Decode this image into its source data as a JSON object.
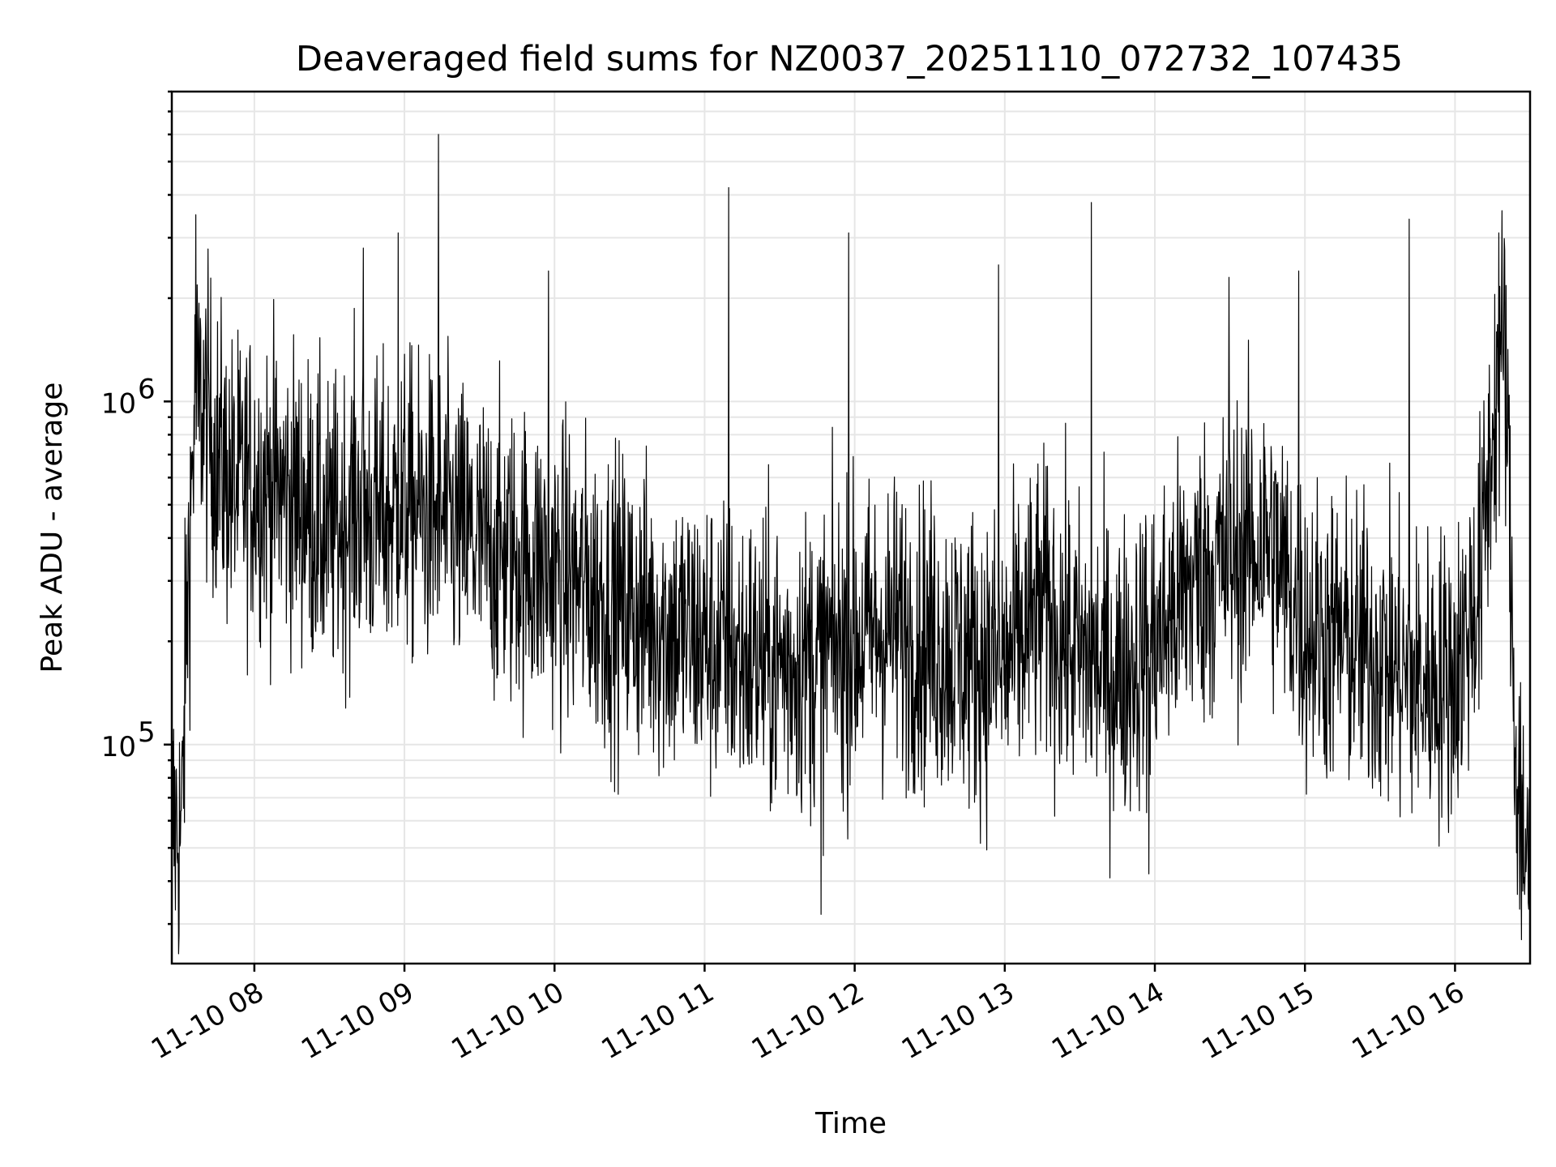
{
  "chart_data": {
    "type": "line",
    "title": "Deaveraged field sums for NZ0037_20251110_072732_107435",
    "xlabel": "Time",
    "ylabel": "Peak ADU - average",
    "yscale": "log",
    "xlim": [
      "2025-11-10 07:27",
      "2025-11-10 16:30"
    ],
    "ylim": [
      23000,
      8000000
    ],
    "grid": true,
    "line_color": "#000000",
    "x_ticks": [
      "11-10 08",
      "11-10 09",
      "11-10 10",
      "11-10 11",
      "11-10 12",
      "11-10 13",
      "11-10 14",
      "11-10 15",
      "11-10 16"
    ],
    "y_ticks": [
      {
        "value": 100000,
        "base": "10",
        "exp": "5"
      },
      {
        "value": 1000000,
        "base": "10",
        "exp": "6"
      }
    ],
    "series": [
      {
        "x": [
          "2025-11-10 07:27",
          "2025-11-10 07:31",
          "2025-11-10 07:33",
          "2025-11-10 07:36",
          "2025-11-10 07:39",
          "2025-11-10 07:45",
          "2025-11-10 07:52",
          "2025-11-10 08:00",
          "2025-11-10 08:10",
          "2025-11-10 08:20",
          "2025-11-10 08:30",
          "2025-11-10 08:40",
          "2025-11-10 08:50",
          "2025-11-10 09:00",
          "2025-11-10 09:15",
          "2025-11-10 09:30",
          "2025-11-10 09:45",
          "2025-11-10 10:00",
          "2025-11-10 10:15",
          "2025-11-10 10:30",
          "2025-11-10 10:45",
          "2025-11-10 11:00",
          "2025-11-10 11:15",
          "2025-11-10 11:30",
          "2025-11-10 11:45",
          "2025-11-10 12:00",
          "2025-11-10 12:15",
          "2025-11-10 12:30",
          "2025-11-10 12:45",
          "2025-11-10 13:00",
          "2025-11-10 13:15",
          "2025-11-10 13:30",
          "2025-11-10 13:45",
          "2025-11-10 14:00",
          "2025-11-10 14:15",
          "2025-11-10 14:30",
          "2025-11-10 14:45",
          "2025-11-10 15:00",
          "2025-11-10 15:15",
          "2025-11-10 15:30",
          "2025-11-10 15:45",
          "2025-11-10 16:00",
          "2025-11-10 16:10",
          "2025-11-10 16:16",
          "2025-11-10 16:20",
          "2025-11-10 16:24",
          "2025-11-10 16:30"
        ],
        "y": [
          60000,
          55000,
          250000,
          900000,
          1000000,
          700000,
          550000,
          600000,
          550000,
          500000,
          400000,
          500000,
          450000,
          500000,
          450000,
          380000,
          350000,
          320000,
          280000,
          250000,
          220000,
          200000,
          180000,
          170000,
          180000,
          200000,
          220000,
          200000,
          180000,
          170000,
          250000,
          180000,
          160000,
          200000,
          300000,
          350000,
          400000,
          220000,
          200000,
          180000,
          150000,
          160000,
          300000,
          1000000,
          1500000,
          100000,
          40000
        ]
      }
    ],
    "spikes": [
      {
        "x": "2025-11-10 07:37",
        "y": 3500000
      },
      {
        "x": "2025-11-10 08:44",
        "y": 2800000
      },
      {
        "x": "2025-11-10 08:58",
        "y": 3100000
      },
      {
        "x": "2025-11-10 09:14",
        "y": 6000000
      },
      {
        "x": "2025-11-10 09:58",
        "y": 2400000
      },
      {
        "x": "2025-11-10 11:10",
        "y": 4200000
      },
      {
        "x": "2025-11-10 11:58",
        "y": 3100000
      },
      {
        "x": "2025-11-10 12:58",
        "y": 2500000
      },
      {
        "x": "2025-11-10 13:35",
        "y": 3800000
      },
      {
        "x": "2025-11-10 14:30",
        "y": 2300000
      },
      {
        "x": "2025-11-10 14:58",
        "y": 2400000
      },
      {
        "x": "2025-11-10 15:42",
        "y": 3400000
      },
      {
        "x": "2025-11-10 16:18",
        "y": 3100000
      },
      {
        "x": "2025-11-10 11:47",
        "y": 32000
      },
      {
        "x": "2025-11-10 13:58",
        "y": 42000
      },
      {
        "x": "2025-11-10 16:27",
        "y": 27000
      }
    ]
  }
}
